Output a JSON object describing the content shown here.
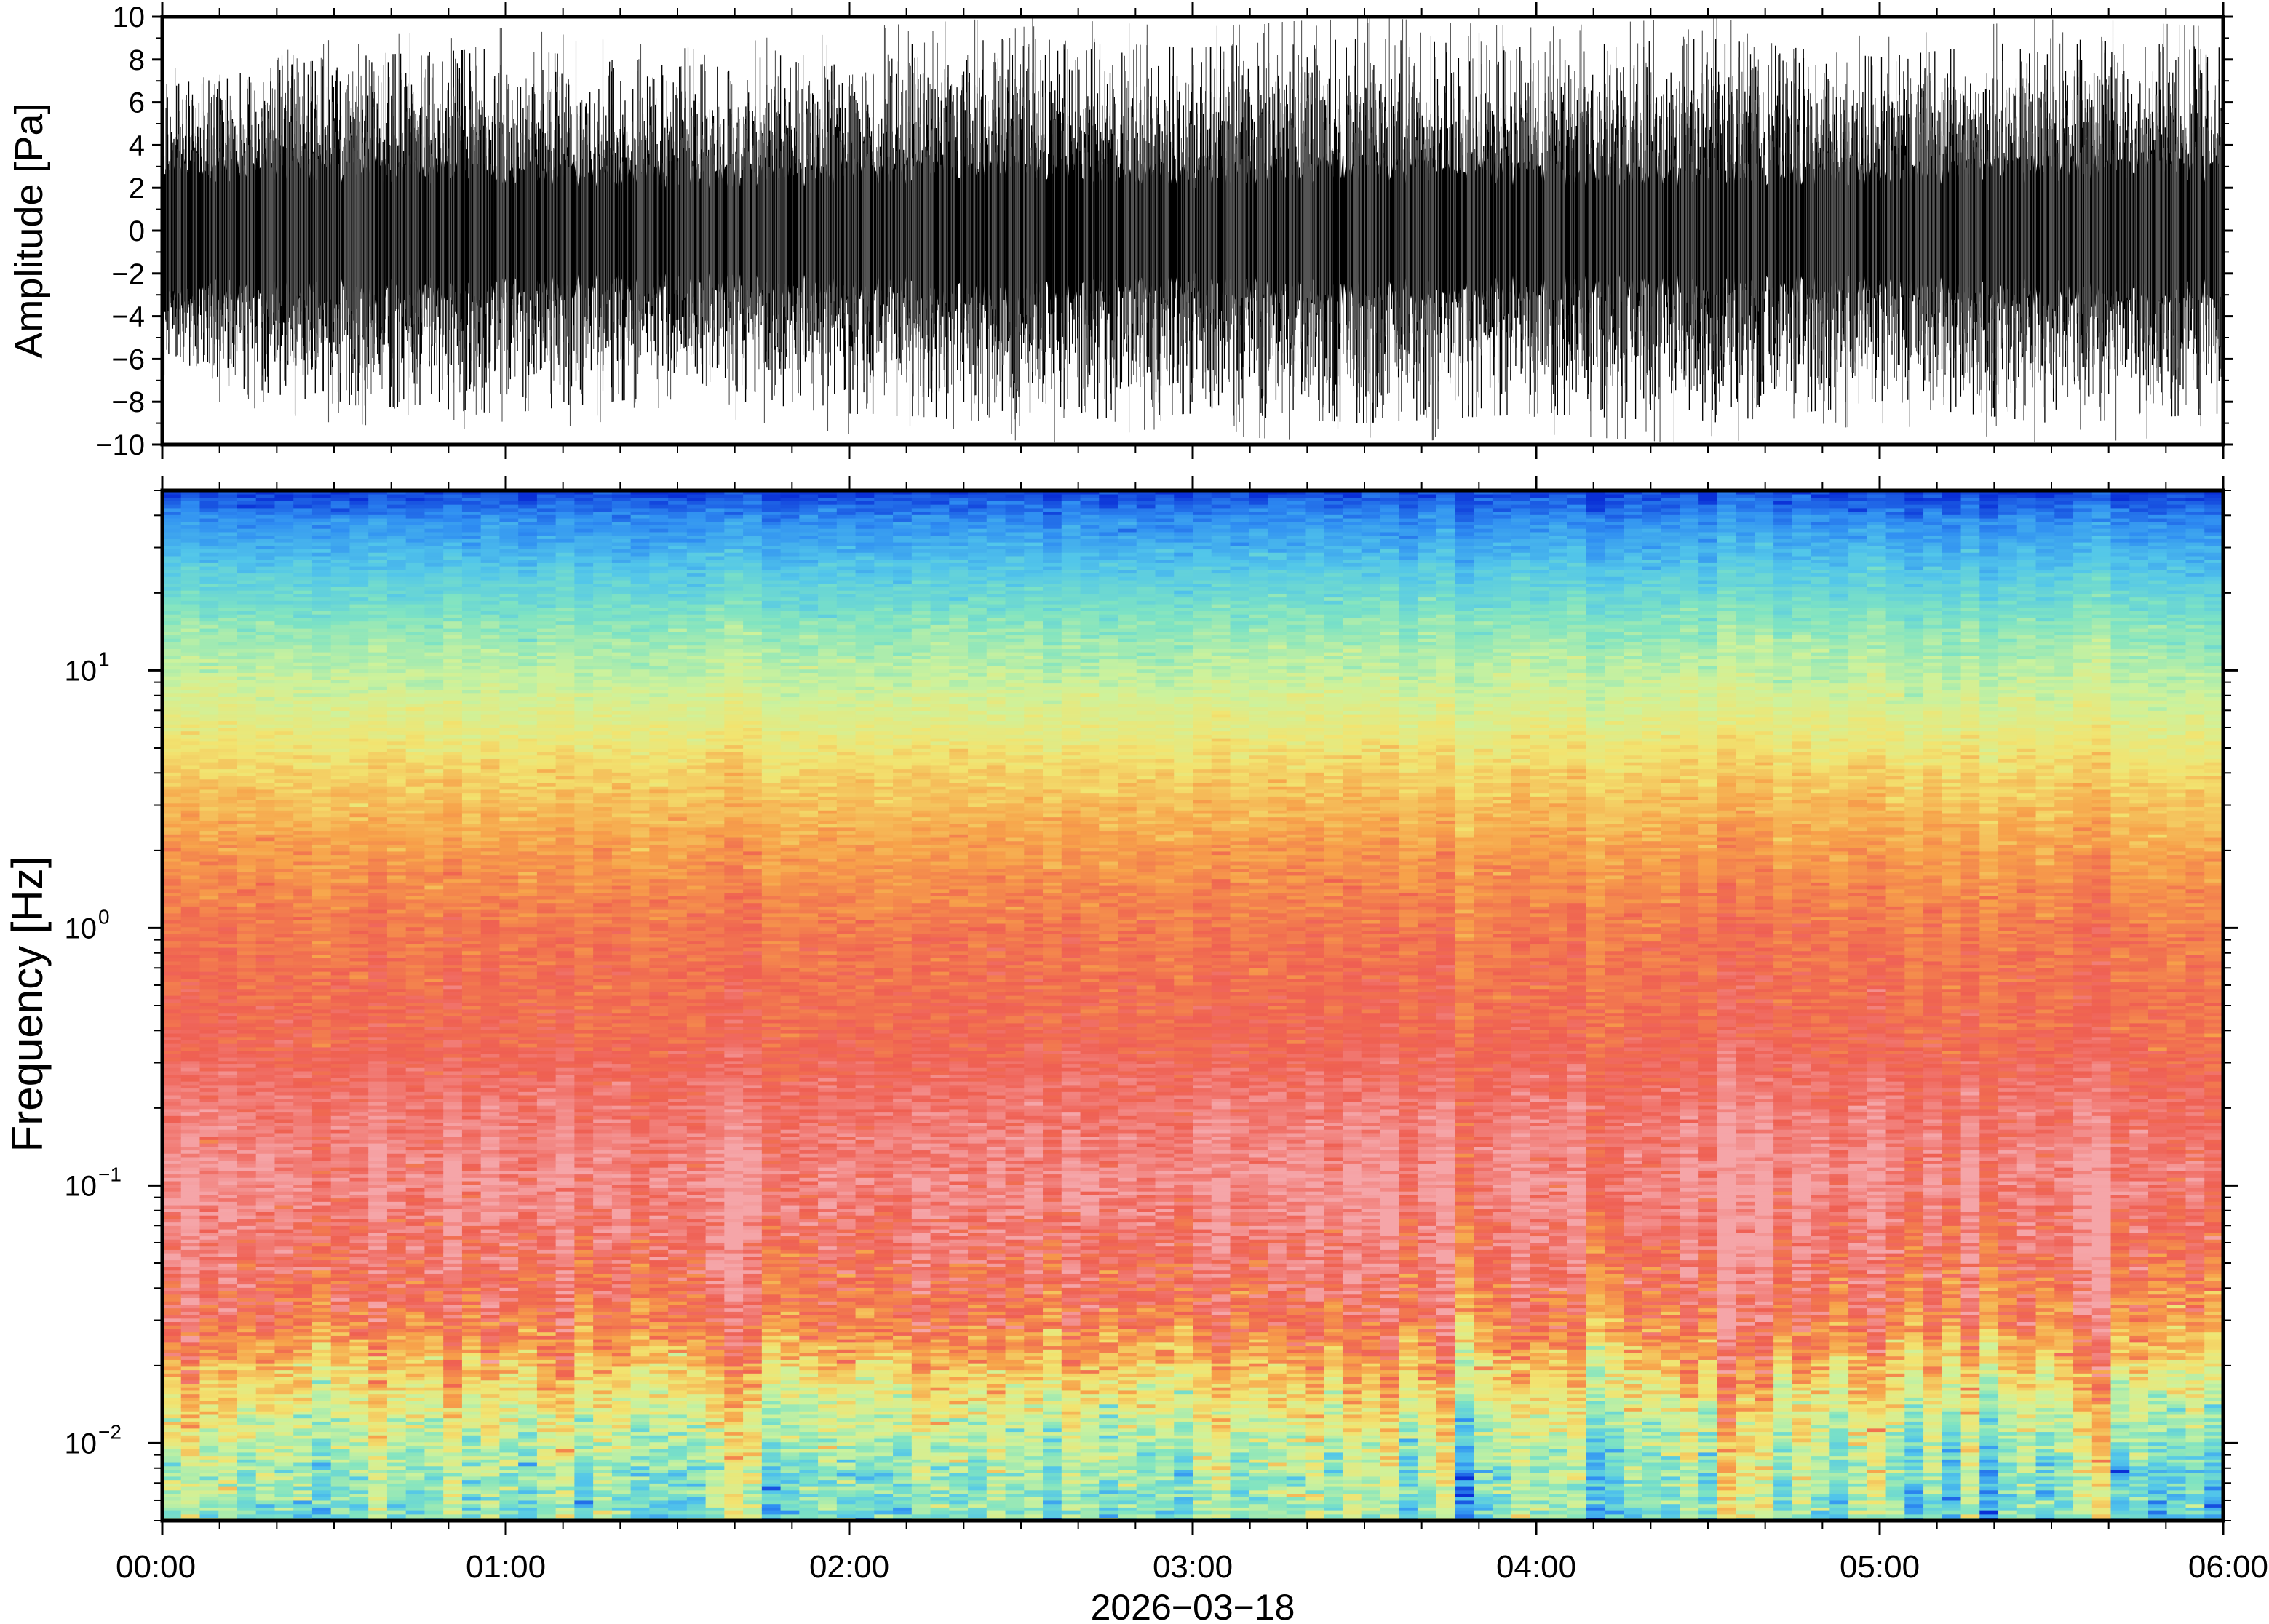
{
  "chart_data": [
    {
      "type": "line",
      "panel": "waveform",
      "ylabel": "Amplitude [Pa]",
      "ylim": [
        -10,
        10
      ],
      "yticks": [
        -10,
        -8,
        -6,
        -4,
        -2,
        0,
        2,
        4,
        6,
        8,
        10
      ],
      "ytick_labels": [
        "−10",
        "−8",
        "−6",
        "−4",
        "−2",
        "0",
        "2",
        "4",
        "6",
        "8",
        "10"
      ],
      "xlim": [
        "00:00",
        "06:00"
      ],
      "grid": false,
      "series": [
        {
          "color": "#000000",
          "envelope": {
            "hours": [
              0,
              0.5,
              1,
              1.5,
              2,
              2.5,
              3,
              3.5,
              4,
              4.5,
              5,
              5.5,
              6
            ],
            "dense_half_width_pa": [
              2.8,
              3.0,
              2.8,
              2.6,
              2.8,
              3.0,
              2.6,
              3.0,
              2.8,
              2.6,
              2.8,
              3.0,
              3.0
            ],
            "peak_abs_pa": [
              7.5,
              9.0,
              9.5,
              8.5,
              9.5,
              10.0,
              9.5,
              10.0,
              9.5,
              10.0,
              9.0,
              10.0,
              9.5
            ]
          }
        }
      ]
    },
    {
      "type": "heatmap",
      "panel": "spectrogram",
      "ylabel": "Frequency [Hz]",
      "yscale": "log",
      "ylim": [
        0.005,
        50
      ],
      "yticks": [
        0.01,
        0.1,
        1,
        10
      ],
      "ytick_mantissa": [
        "10",
        "10",
        "10",
        "10"
      ],
      "ytick_exponents": [
        "−2",
        "−1",
        "0",
        "1"
      ],
      "xlabel": "2026−03−18",
      "xlim": [
        "00:00",
        "06:00"
      ],
      "xtick_labels": [
        "00:00",
        "01:00",
        "02:00",
        "03:00",
        "04:00",
        "05:00",
        "06:00"
      ],
      "colormap": "rainbow (blue = low power, red/pink = high power)",
      "colormap_stops": [
        "#0a2fd6",
        "#2f8ef2",
        "#52c6ea",
        "#7ee3c3",
        "#cdf29c",
        "#f2e470",
        "#f7a24a",
        "#ef5f52",
        "#f5a5a8"
      ],
      "frequency_profile": {
        "frequency_hz": [
          0.005,
          0.008,
          0.012,
          0.02,
          0.03,
          0.05,
          0.1,
          0.2,
          0.4,
          1,
          2,
          4,
          8,
          15,
          25,
          40,
          50
        ],
        "colormap_level": [
          0.38,
          0.43,
          0.53,
          0.7,
          0.84,
          0.9,
          0.96,
          0.92,
          0.86,
          0.83,
          0.76,
          0.66,
          0.52,
          0.4,
          0.26,
          0.12,
          0.02
        ]
      },
      "time_bins": 110
    }
  ]
}
